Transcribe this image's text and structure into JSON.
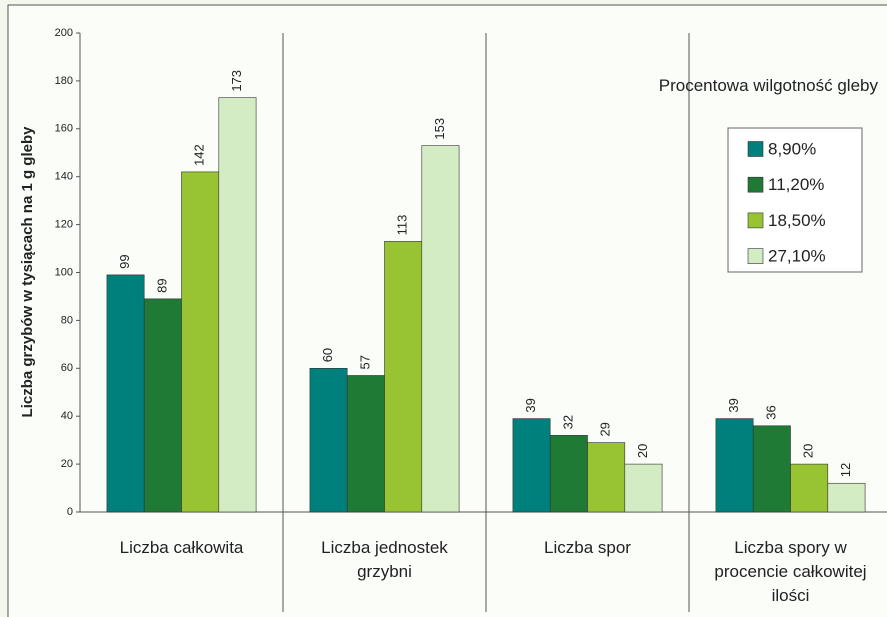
{
  "chart_data": {
    "type": "bar",
    "categories": [
      "Liczba całkowita",
      "Liczba jednostek grzybni",
      "Liczba spor",
      "Liczba spory w procencie całkowitej ilości"
    ],
    "ylabel": "Liczba grzybów w tysiącach na 1 g gleby",
    "legend_title": "Procentowa wilgotność gleby",
    "legend_position": "upper right",
    "series": [
      {
        "name": "8,90%",
        "color": "#00807c",
        "values": [
          99,
          60,
          39,
          39
        ]
      },
      {
        "name": "11,20%",
        "color": "#1e7a35",
        "values": [
          89,
          57,
          32,
          36
        ]
      },
      {
        "name": "18,50%",
        "color": "#98c434",
        "values": [
          142,
          113,
          29,
          20
        ]
      },
      {
        "name": "27,10%",
        "color": "#d3ecc4",
        "values": [
          173,
          153,
          20,
          12
        ]
      }
    ],
    "ylim": [
      0,
      200
    ],
    "yticks": [
      0,
      20,
      40,
      60,
      80,
      100,
      120,
      140,
      160,
      180,
      200
    ]
  }
}
